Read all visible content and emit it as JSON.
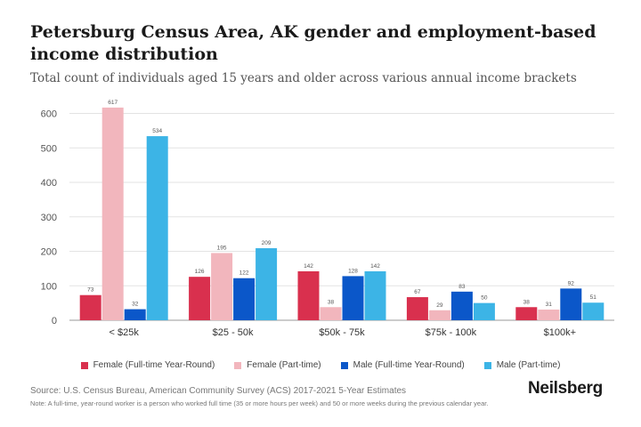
{
  "title": "Petersburg Census Area, AK gender and employment-based income distribution",
  "subtitle": "Total count of individuals aged 15 years and older across various annual income brackets",
  "source": "Source: U.S. Census Bureau, American Community Survey (ACS) 2017-2021 5-Year Estimates",
  "note": "Note: A full-time, year-round worker is a person who worked full time (35 or more hours per week) and 50 or more weeks during the previous calendar year.",
  "brand": "Neilsberg",
  "chart_data": {
    "type": "bar",
    "title": "Petersburg Census Area, AK gender and employment-based income distribution",
    "subtitle": "Total count of individuals aged 15 years and older across various annual income brackets",
    "categories": [
      "< $25k",
      "$25 - 50k",
      "$50k - 75k",
      "$75k - 100k",
      "$100k+"
    ],
    "series": [
      {
        "name": "Female (Full-time Year-Round)",
        "color": "#d9304e",
        "values": [
          73,
          126,
          142,
          67,
          38
        ]
      },
      {
        "name": "Female (Part-time)",
        "color": "#f2b6bd",
        "values": [
          617,
          195,
          38,
          29,
          31
        ]
      },
      {
        "name": "Male (Full-time Year-Round)",
        "color": "#0b57c9",
        "values": [
          32,
          122,
          128,
          83,
          92
        ]
      },
      {
        "name": "Male (Part-time)",
        "color": "#3cb4e6",
        "values": [
          534,
          209,
          142,
          50,
          51
        ]
      }
    ],
    "yticks": [
      0,
      100,
      200,
      300,
      400,
      500,
      600
    ],
    "ylim": [
      0,
      640
    ],
    "grid": true,
    "legend_position": "bottom"
  }
}
